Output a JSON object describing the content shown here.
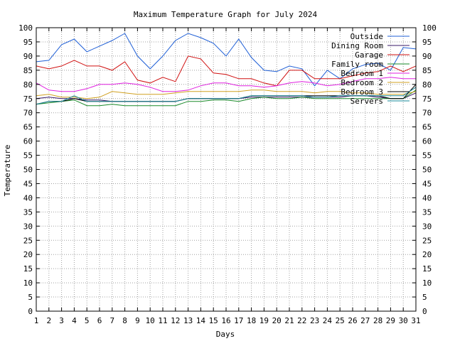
{
  "chart_data": {
    "type": "line",
    "title": "Maximum Temperature Graph for July 2024",
    "xlabel": "Days",
    "ylabel": "Temperature",
    "xlim": [
      1,
      31
    ],
    "ylim": [
      0,
      100
    ],
    "x_ticks": [
      1,
      2,
      3,
      4,
      5,
      6,
      7,
      8,
      9,
      10,
      11,
      12,
      13,
      14,
      15,
      16,
      17,
      18,
      19,
      20,
      21,
      22,
      23,
      24,
      25,
      26,
      27,
      28,
      29,
      30,
      31
    ],
    "y_ticks": [
      0,
      5,
      10,
      15,
      20,
      25,
      30,
      35,
      40,
      45,
      50,
      55,
      60,
      65,
      70,
      75,
      80,
      85,
      90,
      95,
      100
    ],
    "grid": true,
    "legend_position": "top-right",
    "x": [
      1,
      2,
      3,
      4,
      5,
      6,
      7,
      8,
      9,
      10,
      11,
      12,
      13,
      14,
      15,
      16,
      17,
      18,
      19,
      20,
      21,
      22,
      23,
      24,
      25,
      26,
      27,
      28,
      29,
      30,
      31
    ],
    "series": [
      {
        "name": "Outside",
        "color": "#1f5fd6",
        "values": [
          88,
          88.5,
          94,
          96,
          91.5,
          93.5,
          95.5,
          98,
          90,
          85.5,
          90,
          95.5,
          98,
          96.5,
          94.5,
          90,
          96,
          89.5,
          85,
          84.5,
          86.5,
          85.5,
          79.5,
          85,
          82,
          85.5,
          87,
          87.5,
          85,
          93,
          92.5
        ]
      },
      {
        "name": "Dining Room",
        "color": "#3a1a6a",
        "values": [
          75,
          75.5,
          75,
          75,
          74.5,
          74.5,
          74,
          74,
          74,
          74,
          74,
          74,
          75,
          75,
          75,
          75,
          75,
          75.5,
          75.5,
          75.5,
          75.5,
          75.5,
          75.5,
          75.5,
          75.5,
          76,
          76,
          75.5,
          75,
          75,
          77
        ]
      },
      {
        "name": "Garage",
        "color": "#d01010",
        "values": [
          86.5,
          85.5,
          86.5,
          88.5,
          86.5,
          86.5,
          85,
          88,
          81.5,
          80.5,
          82.5,
          81,
          90,
          89,
          84,
          83.5,
          82,
          82,
          80.5,
          79.5,
          85,
          85,
          82,
          82,
          82,
          83,
          84,
          84.5,
          86.5,
          84.5,
          86.5
        ]
      },
      {
        "name": "Family room",
        "color": "#1a8a2a",
        "values": [
          73,
          73.5,
          74,
          74.5,
          72.5,
          72.5,
          73,
          72.5,
          72.5,
          72.5,
          72.5,
          72.5,
          74,
          74,
          74.5,
          74.5,
          74,
          75,
          75.5,
          75,
          75,
          75.5,
          75,
          75,
          75,
          75,
          75,
          75,
          75,
          75,
          78
        ]
      },
      {
        "name": "Bedroom 1",
        "color": "#e020e0",
        "values": [
          80.5,
          78,
          77.5,
          77.5,
          78.5,
          80,
          80,
          80.5,
          80,
          79,
          77.5,
          77.5,
          78,
          79.5,
          80.5,
          80.5,
          79.5,
          79.5,
          79,
          79.5,
          80.5,
          81,
          80.5,
          79.5,
          80,
          81,
          82,
          82,
          82.5,
          82,
          82
        ]
      },
      {
        "name": "Bedroom 2",
        "color": "#d0a020",
        "values": [
          76,
          76.5,
          75.5,
          75.5,
          75,
          75.5,
          77.5,
          77,
          76.5,
          76.5,
          76.5,
          77,
          77.5,
          77.5,
          77.5,
          77.5,
          77.5,
          78,
          78,
          77.5,
          77.5,
          77.5,
          77,
          77.5,
          77.5,
          77,
          77,
          76.5,
          76.5,
          76.5,
          77.5
        ]
      },
      {
        "name": "Bedroom 3",
        "color": "#000000",
        "values": [
          73,
          74,
          74,
          75,
          74,
          74,
          74,
          74,
          74,
          74,
          74,
          74,
          75,
          75,
          75,
          75,
          75,
          76,
          76,
          76,
          76,
          76,
          76,
          76,
          76,
          76,
          76,
          76,
          75,
          75,
          80
        ]
      },
      {
        "name": "Servers",
        "color": "#1a8a9a",
        "values": [
          73,
          74,
          74,
          76,
          74,
          74,
          74,
          74,
          74,
          74,
          74,
          74,
          75,
          75,
          75,
          75,
          75,
          76,
          76,
          76,
          76,
          76,
          75.5,
          75.5,
          76,
          76,
          76,
          76,
          76,
          76,
          79
        ]
      }
    ]
  }
}
